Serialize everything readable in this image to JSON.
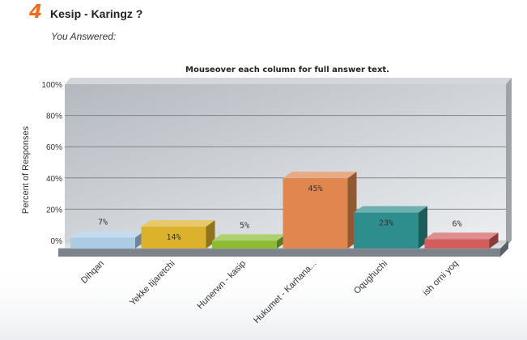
{
  "question": {
    "number": "4",
    "title": "Kesip - Karingz ?",
    "subtitle": "You Answered:"
  },
  "chart_note": "Mouseover each column for full answer text.",
  "chart_data": {
    "type": "bar",
    "title": "",
    "ylabel": "Percent of Responses",
    "xlabel": "",
    "ylim": [
      0,
      100
    ],
    "yticks": [
      "0%",
      "20%",
      "40%",
      "60%",
      "80%",
      "100%"
    ],
    "grid": true,
    "categories": [
      "Dihqan",
      "Yekke tijaretchi",
      "Hunerwn - kasip",
      "Hukumet - Karhana...",
      "Oqughuchi",
      "ish orni yoq"
    ],
    "values": [
      7,
      14,
      5,
      45,
      23,
      6
    ],
    "data_labels": [
      "7%",
      "14%",
      "5%",
      "45%",
      "23%",
      "6%"
    ],
    "colors": [
      "#aecbe6",
      "#dcb22c",
      "#8cbc34",
      "#e08750",
      "#2e8e8e",
      "#d35c5c"
    ]
  }
}
